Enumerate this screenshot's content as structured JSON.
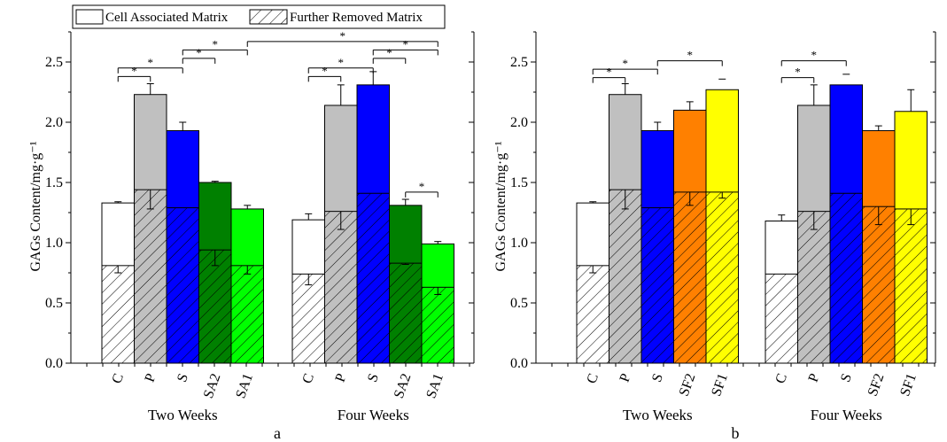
{
  "legend": {
    "cell_associated": "Cell Associated Matrix",
    "further_removed": "Further Removed Matrix"
  },
  "colors": {
    "C": "#ffffff",
    "P": "#c0c0c0",
    "S": "#0000ff",
    "SA2": "#008000",
    "SA1": "#00ff00",
    "SF2": "#ff8000",
    "SF1": "#ffff00"
  },
  "chart_data": [
    {
      "type": "bar",
      "panel_label": "a",
      "ylabel": "GAGs Content/mg·g⁻¹",
      "ylim": [
        0,
        2.75
      ],
      "yticks": [
        "0.0",
        "0.5",
        "1.0",
        "1.5",
        "2.0",
        "2.5"
      ],
      "groups": [
        {
          "name": "Two Weeks",
          "bars": [
            {
              "label": "C",
              "color_key": "C",
              "total": 1.33,
              "cell_associated": 0.81,
              "total_err": 0.01,
              "cell_err": 0.06
            },
            {
              "label": "P",
              "color_key": "P",
              "total": 2.23,
              "cell_associated": 1.44,
              "total_err": 0.09,
              "cell_err": 0.16
            },
            {
              "label": "S",
              "color_key": "S",
              "total": 1.93,
              "cell_associated": 1.29,
              "total_err": 0.07,
              "cell_err": 0.0
            },
            {
              "label": "SA2",
              "color_key": "SA2",
              "total": 1.5,
              "cell_associated": 0.94,
              "total_err": 0.01,
              "cell_err": 0.13
            },
            {
              "label": "SA1",
              "color_key": "SA1",
              "total": 1.28,
              "cell_associated": 0.81,
              "total_err": 0.03,
              "cell_err": 0.07
            }
          ]
        },
        {
          "name": "Four Weeks",
          "bars": [
            {
              "label": "C",
              "color_key": "C",
              "total": 1.19,
              "cell_associated": 0.74,
              "total_err": 0.05,
              "cell_err": 0.09
            },
            {
              "label": "P",
              "color_key": "P",
              "total": 2.14,
              "cell_associated": 1.26,
              "total_err": 0.17,
              "cell_err": 0.15
            },
            {
              "label": "S",
              "color_key": "S",
              "total": 2.31,
              "cell_associated": 1.41,
              "total_err": 0.11,
              "cell_err": 0.0
            },
            {
              "label": "SA2",
              "color_key": "SA2",
              "total": 1.31,
              "cell_associated": 0.83,
              "total_err": 0.05,
              "cell_err": 0.01
            },
            {
              "label": "SA1",
              "color_key": "SA1",
              "total": 0.99,
              "cell_associated": 0.63,
              "total_err": 0.02,
              "cell_err": 0.06
            }
          ]
        }
      ],
      "significance": [
        {
          "from": [
            0,
            0
          ],
          "to": [
            0,
            1
          ],
          "y": 2.38,
          "label": "*"
        },
        {
          "from": [
            0,
            0
          ],
          "to": [
            0,
            2
          ],
          "y": 2.45,
          "label": "*"
        },
        {
          "from": [
            0,
            2
          ],
          "to": [
            0,
            3
          ],
          "y": 2.53,
          "label": "*"
        },
        {
          "from": [
            0,
            2
          ],
          "to": [
            0,
            4
          ],
          "y": 2.6,
          "label": "*"
        },
        {
          "from": [
            0,
            4
          ],
          "to": [
            1,
            4
          ],
          "y": 2.67,
          "label": "*"
        },
        {
          "from": [
            1,
            0
          ],
          "to": [
            1,
            1
          ],
          "y": 2.38,
          "label": "*"
        },
        {
          "from": [
            1,
            0
          ],
          "to": [
            1,
            2
          ],
          "y": 2.45,
          "label": "*"
        },
        {
          "from": [
            1,
            2
          ],
          "to": [
            1,
            3
          ],
          "y": 2.53,
          "label": "*"
        },
        {
          "from": [
            1,
            2
          ],
          "to": [
            1,
            4
          ],
          "y": 2.6,
          "label": "*"
        },
        {
          "from": [
            1,
            3
          ],
          "to": [
            1,
            4
          ],
          "y": 1.42,
          "label": "*"
        }
      ]
    },
    {
      "type": "bar",
      "panel_label": "b",
      "ylabel": "GAGs Content/mg·g⁻¹",
      "ylim": [
        0,
        2.75
      ],
      "yticks": [
        "0.0",
        "0.5",
        "1.0",
        "1.5",
        "2.0",
        "2.5"
      ],
      "groups": [
        {
          "name": "Two Weeks",
          "bars": [
            {
              "label": "C",
              "color_key": "C",
              "total": 1.33,
              "cell_associated": 0.81,
              "total_err": 0.01,
              "cell_err": 0.06
            },
            {
              "label": "P",
              "color_key": "P",
              "total": 2.23,
              "cell_associated": 1.44,
              "total_err": 0.09,
              "cell_err": 0.16
            },
            {
              "label": "S",
              "color_key": "S",
              "total": 1.93,
              "cell_associated": 1.29,
              "total_err": 0.07,
              "cell_err": 0.0
            },
            {
              "label": "SF2",
              "color_key": "SF2",
              "total": 2.1,
              "cell_associated": 1.42,
              "total_err": 0.07,
              "cell_err": 0.11
            },
            {
              "label": "SF1",
              "color_key": "SF1",
              "total": 2.27,
              "cell_associated": 1.42,
              "total_err": 0.0,
              "cell_err": 0.05
            }
          ]
        },
        {
          "name": "Four Weeks",
          "bars": [
            {
              "label": "C",
              "color_key": "C",
              "total": 1.18,
              "cell_associated": 0.74,
              "total_err": 0.05,
              "cell_err": 0.0
            },
            {
              "label": "P",
              "color_key": "P",
              "total": 2.14,
              "cell_associated": 1.26,
              "total_err": 0.17,
              "cell_err": 0.15
            },
            {
              "label": "S",
              "color_key": "S",
              "total": 2.31,
              "cell_associated": 1.41,
              "total_err": 0.0,
              "cell_err": 0.0
            },
            {
              "label": "SF2",
              "color_key": "SF2",
              "total": 1.93,
              "cell_associated": 1.3,
              "total_err": 0.04,
              "cell_err": 0.15
            },
            {
              "label": "SF1",
              "color_key": "SF1",
              "total": 2.09,
              "cell_associated": 1.28,
              "total_err": 0.18,
              "cell_err": 0.13
            }
          ]
        }
      ],
      "significance": [
        {
          "from": [
            0,
            0
          ],
          "to": [
            0,
            1
          ],
          "y": 2.37,
          "label": "*"
        },
        {
          "from": [
            0,
            0
          ],
          "to": [
            0,
            2
          ],
          "y": 2.44,
          "label": "*"
        },
        {
          "from": [
            0,
            2
          ],
          "to": [
            0,
            4
          ],
          "y": 2.51,
          "label": "*"
        },
        {
          "from": [
            1,
            0
          ],
          "to": [
            1,
            1
          ],
          "y": 2.37,
          "label": "*"
        },
        {
          "from": [
            1,
            0
          ],
          "to": [
            1,
            2
          ],
          "y": 2.51,
          "label": "*"
        }
      ]
    }
  ]
}
